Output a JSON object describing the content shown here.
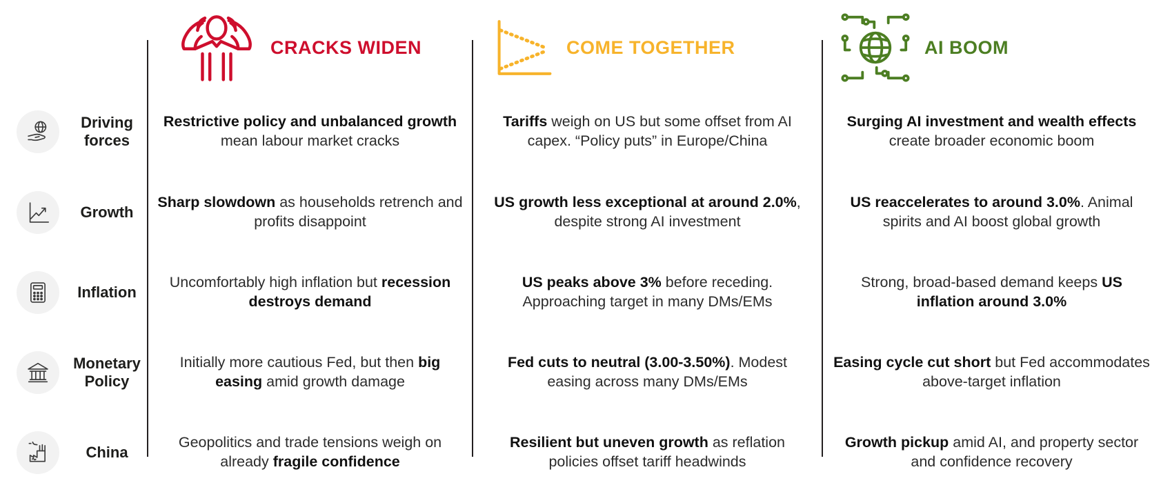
{
  "table": {
    "rows": [
      {
        "label": "Driving forces",
        "icon": "hand-globe-icon"
      },
      {
        "label": "Growth",
        "icon": "growth-chart-icon"
      },
      {
        "label": "Inflation",
        "icon": "calculator-icon"
      },
      {
        "label": "Monetary Policy",
        "icon": "bank-icon"
      },
      {
        "label": "China",
        "icon": "factory-icon"
      }
    ],
    "columns": [
      {
        "title": "CRACKS WIDEN",
        "color": "#CE0E2D",
        "icon": "stressed-person-icon",
        "cells": [
          [
            {
              "t": "Restrictive policy and unbalanced growth",
              "b": true
            },
            {
              "t": " mean labour market cracks",
              "b": false
            }
          ],
          [
            {
              "t": "Sharp slowdown",
              "b": true
            },
            {
              "t": " as households retrench and profits disappoint",
              "b": false
            }
          ],
          [
            {
              "t": "Uncomfortably high inflation but ",
              "b": false
            },
            {
              "t": "recession destroys demand",
              "b": true
            }
          ],
          [
            {
              "t": "Initially more cautious Fed, but then ",
              "b": false
            },
            {
              "t": "big easing",
              "b": true
            },
            {
              "t": " amid growth damage",
              "b": false
            }
          ],
          [
            {
              "t": "Geopolitics and trade tensions weigh on already ",
              "b": false
            },
            {
              "t": "fragile confidence",
              "b": true
            }
          ]
        ]
      },
      {
        "title": "COME TOGETHER",
        "color": "#F7B32B",
        "icon": "converging-lines-chart-icon",
        "cells": [
          [
            {
              "t": "Tariffs",
              "b": true
            },
            {
              "t": " weigh on US but some offset from AI capex. “Policy puts” in Europe/China",
              "b": false
            }
          ],
          [
            {
              "t": "US growth less exceptional at around 2.0%",
              "b": true
            },
            {
              "t": ", despite strong AI investment",
              "b": false
            }
          ],
          [
            {
              "t": "US peaks above 3%",
              "b": true
            },
            {
              "t": " before receding. Approaching target in many DMs/EMs",
              "b": false
            }
          ],
          [
            {
              "t": "Fed cuts to neutral (3.00-3.50%)",
              "b": true
            },
            {
              "t": ". Modest easing across many DMs/EMs",
              "b": false
            }
          ],
          [
            {
              "t": "Resilient but uneven growth",
              "b": true
            },
            {
              "t": " as reflation policies offset tariff headwinds",
              "b": false
            }
          ]
        ]
      },
      {
        "title": "AI BOOM",
        "color": "#4C7E22",
        "icon": "ai-globe-circuit-icon",
        "cells": [
          [
            {
              "t": "Surging AI investment and wealth effects",
              "b": true
            },
            {
              "t": " create broader economic boom",
              "b": false
            }
          ],
          [
            {
              "t": "US reaccelerates to around 3.0%",
              "b": true
            },
            {
              "t": ". Animal spirits and AI boost global growth",
              "b": false
            }
          ],
          [
            {
              "t": "Strong, broad-based demand keeps ",
              "b": false
            },
            {
              "t": "US inflation around 3.0%",
              "b": true
            }
          ],
          [
            {
              "t": "Easing cycle cut short",
              "b": true
            },
            {
              "t": " but Fed accommodates above-target inflation",
              "b": false
            }
          ],
          [
            {
              "t": "Growth pickup",
              "b": true
            },
            {
              "t": " amid AI, and property sector and confidence recovery",
              "b": false
            }
          ]
        ]
      }
    ]
  }
}
